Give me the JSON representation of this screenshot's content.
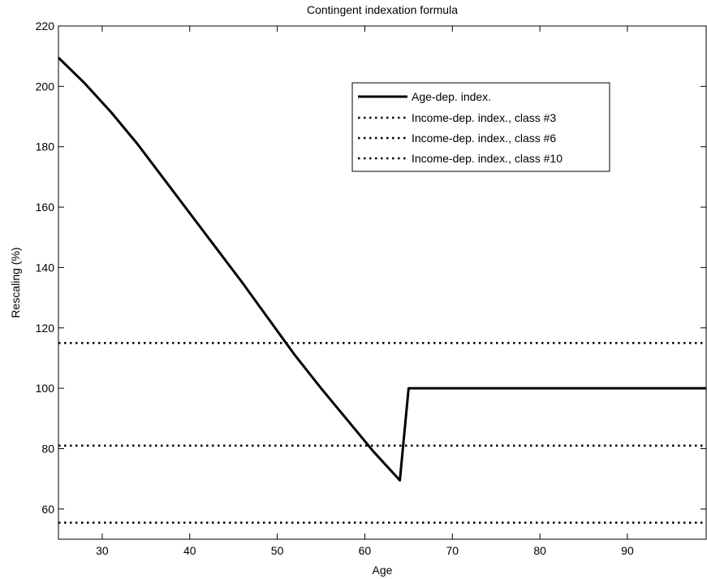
{
  "chart_data": {
    "type": "line",
    "title": "Contingent indexation formula",
    "xlabel": "Age",
    "ylabel": "Rescaling (%)",
    "xlim": [
      25,
      99
    ],
    "ylim": [
      50,
      220
    ],
    "xticks": [
      30,
      40,
      50,
      60,
      70,
      80,
      90
    ],
    "yticks": [
      60,
      80,
      100,
      120,
      140,
      160,
      180,
      200,
      220
    ],
    "grid": false,
    "legend_position": "top-right",
    "series": [
      {
        "name": "Age-dep. index.",
        "style": "solid",
        "color": "#000000",
        "x": [
          25,
          28,
          31,
          34,
          37,
          40,
          43,
          46,
          49,
          52,
          55,
          58,
          61,
          64,
          65,
          70,
          80,
          90,
          99
        ],
        "y": [
          209.5,
          201,
          191.5,
          181,
          169.5,
          158,
          146.5,
          135,
          123,
          111,
          100,
          89.5,
          79,
          69.5,
          100,
          100,
          100,
          100,
          100
        ]
      },
      {
        "name": "Income-dep. index., class #3",
        "style": "dotted",
        "color": "#000000",
        "x": [
          25,
          99
        ],
        "y": [
          115,
          115
        ]
      },
      {
        "name": "Income-dep. index., class #6",
        "style": "dotted",
        "color": "#000000",
        "x": [
          25,
          99
        ],
        "y": [
          81,
          81
        ]
      },
      {
        "name": "Income-dep. index., class #10",
        "style": "dotted",
        "color": "#000000",
        "x": [
          25,
          99
        ],
        "y": [
          55.5,
          55.5
        ]
      }
    ]
  }
}
